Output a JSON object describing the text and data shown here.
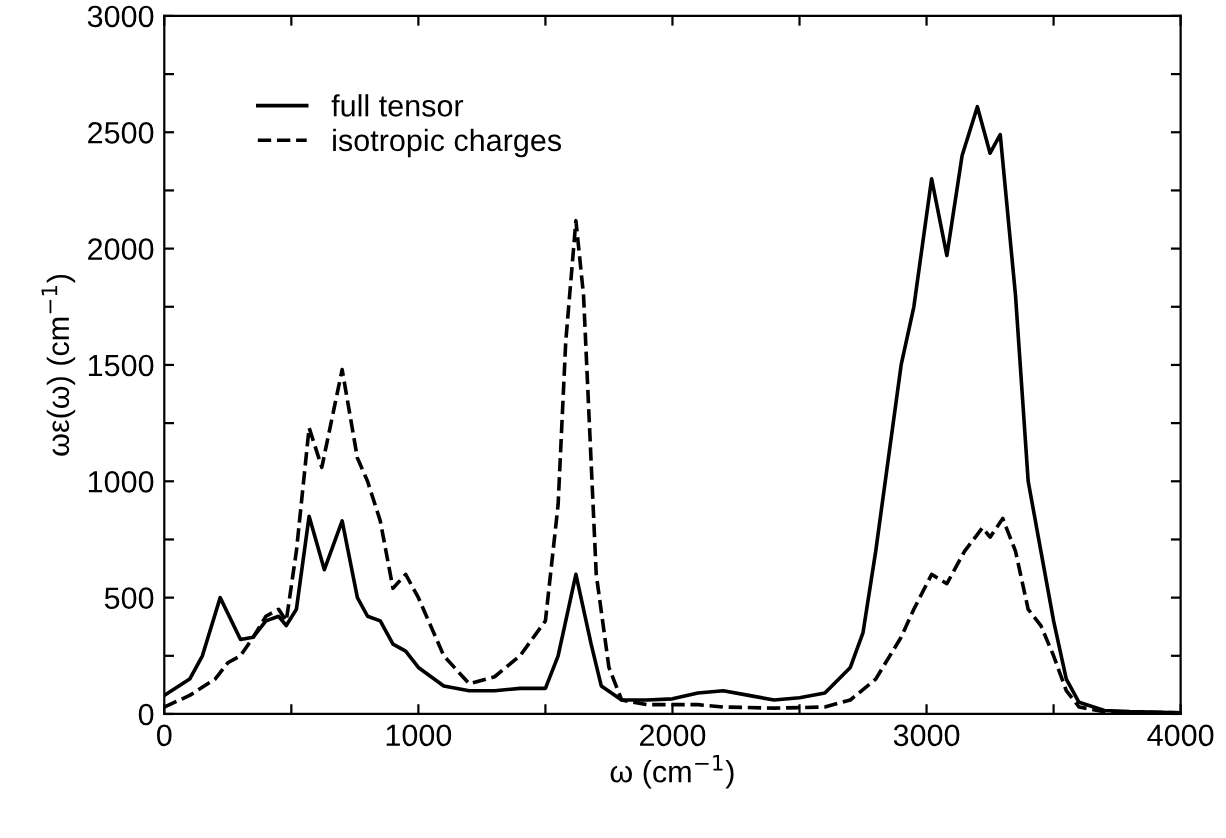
{
  "chart_data": {
    "type": "line",
    "xlabel": "ω (cm$^{−1}$)",
    "ylabel": "ωε(ω) (cm$^{−1}$)",
    "xlim": [
      0,
      4000
    ],
    "ylim": [
      0,
      3000
    ],
    "xticks": [
      0,
      {
        "value": 500,
        "label": null
      },
      1000,
      {
        "value": 1500,
        "label": null
      },
      2000,
      {
        "value": 2500,
        "label": null
      },
      3000,
      {
        "value": 3500,
        "label": null
      },
      4000
    ],
    "yticks": [
      0,
      {
        "value": 250,
        "label": null
      },
      500,
      {
        "value": 750,
        "label": null
      },
      1000,
      {
        "value": 1250,
        "label": null
      },
      1500,
      {
        "value": 1750,
        "label": null
      },
      2000,
      {
        "value": 2250,
        "label": null
      },
      2500,
      {
        "value": 2750,
        "label": null
      },
      3000
    ],
    "legend": "top left",
    "grid": false,
    "marker": "none",
    "series": [
      {
        "name": "full tensor",
        "color": "#000000",
        "line_style": "solid",
        "x": [
          0,
          100,
          150,
          220,
          300,
          350,
          400,
          450,
          480,
          520,
          570,
          630,
          700,
          760,
          800,
          850,
          900,
          950,
          1000,
          1100,
          1200,
          1300,
          1400,
          1500,
          1550,
          1620,
          1680,
          1720,
          1800,
          1900,
          2000,
          2100,
          2200,
          2300,
          2400,
          2500,
          2600,
          2700,
          2750,
          2800,
          2850,
          2900,
          2950,
          3020,
          3080,
          3140,
          3200,
          3250,
          3290,
          3350,
          3400,
          3450,
          3500,
          3550,
          3600,
          3700,
          3800,
          4000
        ],
        "values": [
          80,
          150,
          250,
          500,
          320,
          330,
          400,
          420,
          380,
          450,
          850,
          620,
          830,
          500,
          420,
          400,
          300,
          270,
          200,
          120,
          100,
          100,
          110,
          110,
          250,
          600,
          300,
          120,
          60,
          60,
          65,
          90,
          100,
          80,
          60,
          70,
          90,
          200,
          350,
          700,
          1100,
          1500,
          1750,
          2300,
          1970,
          2400,
          2610,
          2410,
          2490,
          1800,
          1000,
          700,
          400,
          150,
          50,
          15,
          10,
          5
        ]
      },
      {
        "name": "isotropic charges",
        "color": "#000000",
        "line_style": "dashed",
        "x": [
          0,
          100,
          200,
          250,
          300,
          350,
          400,
          450,
          480,
          520,
          570,
          620,
          700,
          760,
          800,
          850,
          900,
          950,
          1000,
          1100,
          1200,
          1300,
          1400,
          1500,
          1550,
          1580,
          1620,
          1650,
          1700,
          1750,
          1800,
          1900,
          2000,
          2100,
          2200,
          2400,
          2600,
          2700,
          2800,
          2900,
          2950,
          3020,
          3080,
          3150,
          3220,
          3250,
          3300,
          3350,
          3400,
          3450,
          3500,
          3550,
          3600,
          3700,
          4000
        ],
        "values": [
          30,
          80,
          150,
          220,
          250,
          330,
          420,
          450,
          400,
          700,
          1230,
          1060,
          1480,
          1100,
          1000,
          830,
          540,
          600,
          500,
          250,
          130,
          160,
          250,
          400,
          900,
          1600,
          2120,
          1800,
          600,
          200,
          60,
          40,
          40,
          40,
          30,
          25,
          30,
          60,
          150,
          330,
          450,
          600,
          560,
          700,
          800,
          760,
          840,
          700,
          450,
          380,
          250,
          100,
          30,
          10,
          5
        ]
      }
    ]
  }
}
